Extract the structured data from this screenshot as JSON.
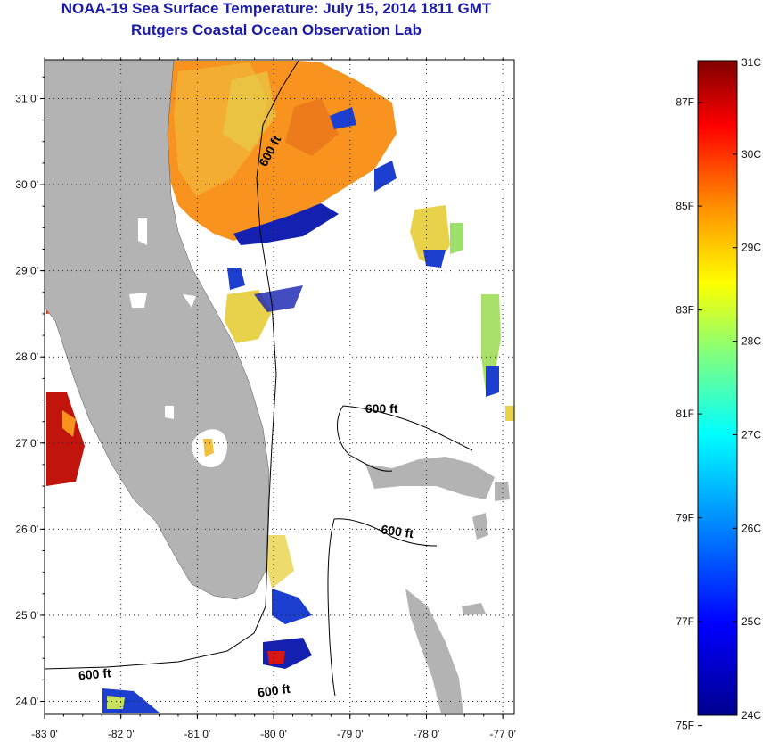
{
  "header": {
    "title": "NOAA-19 Sea Surface Temperature:  July 15, 2014 1811 GMT",
    "subtitle": "Rutgers Coastal Ocean Observation Lab"
  },
  "map": {
    "lat_ticks": [
      "31 0'",
      "30 0'",
      "29 0'",
      "28 0'",
      "27 0'",
      "26 0'",
      "25 0'",
      "24 0'"
    ],
    "lon_ticks": [
      "-83 0'",
      "-82 0'",
      "-81 0'",
      "-80 0'",
      "-79 0'",
      "-78 0'",
      "-77 0'"
    ],
    "lon_range": [
      -83,
      -76.85
    ],
    "lat_range": [
      23.85,
      31.45
    ],
    "land_color": "#b3b3b3",
    "contour_labels": [
      {
        "text": "600 ft",
        "lon": -80.1,
        "lat": 30.2,
        "rotate": -62
      },
      {
        "text": "600 ft",
        "lon": -78.8,
        "lat": 27.35,
        "rotate": 0
      },
      {
        "text": "600 ft",
        "lon": -78.6,
        "lat": 25.95,
        "rotate": 8
      },
      {
        "text": "600 ft",
        "lon": -82.55,
        "lat": 24.25,
        "rotate": -5
      },
      {
        "text": "600 ft",
        "lon": -80.2,
        "lat": 24.05,
        "rotate": -8
      }
    ]
  },
  "colorbar": {
    "celsius_labels": [
      "31C",
      "30C",
      "29C",
      "28C",
      "27C",
      "26C",
      "25C",
      "24C"
    ],
    "fahrenheit_labels": [
      "87F",
      "85F",
      "83F",
      "81F",
      "79F",
      "77F",
      "75F"
    ],
    "c_range": [
      24,
      31
    ],
    "f_values": [
      87,
      85,
      83,
      81,
      79,
      77,
      75
    ]
  }
}
